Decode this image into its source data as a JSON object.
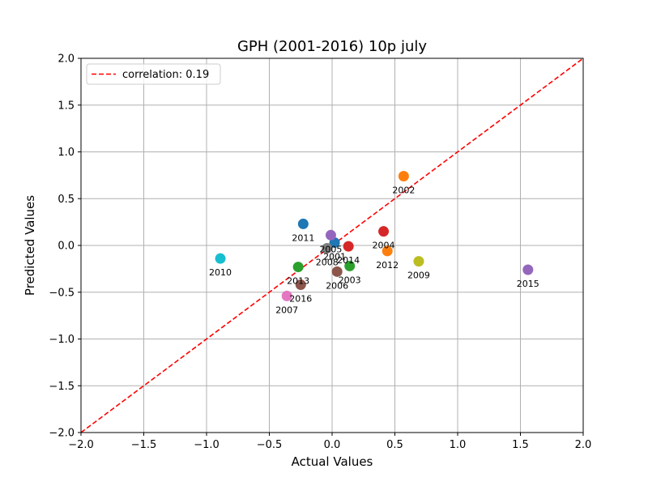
{
  "chart_data": {
    "type": "scatter",
    "title": "GPH (2001-2016) 10p july",
    "xlabel": "Actual Values",
    "ylabel": "Predicted Values",
    "xlim": [
      -2.0,
      2.0
    ],
    "ylim": [
      -2.0,
      2.0
    ],
    "xticks": [
      -2.0,
      -1.5,
      -1.0,
      -0.5,
      0.0,
      0.5,
      1.0,
      1.5,
      2.0
    ],
    "yticks": [
      -2.0,
      -1.5,
      -1.0,
      -0.5,
      0.0,
      0.5,
      1.0,
      1.5,
      2.0
    ],
    "xtick_labels": [
      "−2.0",
      "−1.5",
      "−1.0",
      "−0.5",
      "0.0",
      "0.5",
      "1.0",
      "1.5",
      "2.0"
    ],
    "ytick_labels": [
      "−2.0",
      "−1.5",
      "−1.0",
      "−0.5",
      "0.0",
      "0.5",
      "1.0",
      "1.5",
      "2.0"
    ],
    "grid": true,
    "legend_position": "upper-left",
    "reference_line": {
      "label": "correlation: 0.19",
      "color": "#ff0000",
      "style": "dashed",
      "from": [
        -2.0,
        -2.0
      ],
      "to": [
        2.0,
        2.0
      ]
    },
    "points": [
      {
        "label": "2001",
        "x": 0.02,
        "y": 0.03,
        "color": "#1f77b4"
      },
      {
        "label": "2002",
        "x": 0.57,
        "y": 0.74,
        "color": "#ff7f0e"
      },
      {
        "label": "2003",
        "x": 0.14,
        "y": -0.22,
        "color": "#2ca02c"
      },
      {
        "label": "2004",
        "x": 0.41,
        "y": 0.15,
        "color": "#d62728"
      },
      {
        "label": "2005",
        "x": -0.01,
        "y": 0.11,
        "color": "#9467bd"
      },
      {
        "label": "2006",
        "x": 0.04,
        "y": -0.28,
        "color": "#8c564b"
      },
      {
        "label": "2007",
        "x": -0.36,
        "y": -0.54,
        "color": "#e377c2"
      },
      {
        "label": "2008",
        "x": -0.04,
        "y": -0.03,
        "color": "#7f7f7f"
      },
      {
        "label": "2009",
        "x": 0.69,
        "y": -0.17,
        "color": "#bcbd22"
      },
      {
        "label": "2010",
        "x": -0.89,
        "y": -0.14,
        "color": "#17becf"
      },
      {
        "label": "2011",
        "x": -0.23,
        "y": 0.23,
        "color": "#1f77b4"
      },
      {
        "label": "2012",
        "x": 0.44,
        "y": -0.06,
        "color": "#ff7f0e"
      },
      {
        "label": "2013",
        "x": -0.27,
        "y": -0.23,
        "color": "#2ca02c"
      },
      {
        "label": "2014",
        "x": 0.13,
        "y": -0.01,
        "color": "#d62728"
      },
      {
        "label": "2015",
        "x": 1.56,
        "y": -0.26,
        "color": "#9467bd"
      },
      {
        "label": "2016",
        "x": -0.25,
        "y": -0.42,
        "color": "#8c564b"
      }
    ]
  }
}
